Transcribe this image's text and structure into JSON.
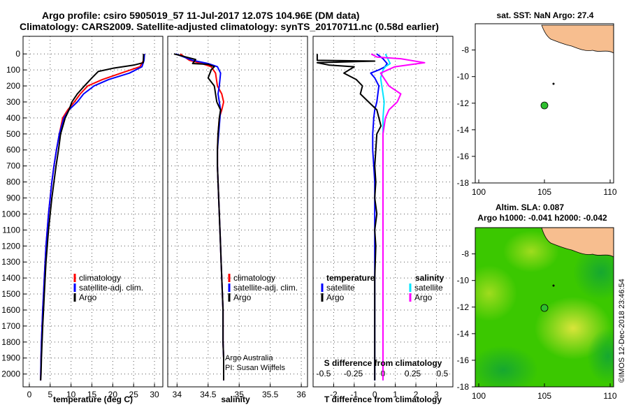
{
  "header": {
    "title_line1": "Argo profile: csiro 5905019_57 11-Jul-2017 12.07S 104.96E (DM data)",
    "title_line2": "Climatology: CARS2009. Satellite-adjusted climatology: synTS_20170711.nc (0.58d earlier)"
  },
  "colors": {
    "climatology": "#ff0000",
    "satellite": "#0000ff",
    "argo": "#000000",
    "salinity_satellite": "#00e5ff",
    "salinity_argo": "#ff00ff",
    "land": "#f7be8f",
    "sst_background": "#ffffff",
    "sla_background": "#3bc800",
    "float_marker": "#2fbf2f"
  },
  "chart_data": [
    {
      "type": "line",
      "name": "temperature-profile",
      "xlabel": "temperature (deg C)",
      "ylabel": "",
      "xlim": [
        -1.5,
        32
      ],
      "ylim": [
        2080,
        0
      ],
      "xticks": [
        0,
        5,
        10,
        15,
        20,
        25,
        30
      ],
      "xtick_labels": [
        "0",
        "5",
        "10",
        "15",
        "20",
        "25",
        "30"
      ],
      "yticks": [
        0,
        100,
        200,
        300,
        400,
        500,
        600,
        700,
        800,
        900,
        1000,
        1100,
        1200,
        1300,
        1400,
        1500,
        1600,
        1700,
        1800,
        1900,
        2000
      ],
      "ytick_labels": [
        "0",
        "100",
        "200",
        "300",
        "400",
        "500",
        "600",
        "700",
        "800",
        "900",
        "1000",
        "1100",
        "1200",
        "1300",
        "1400",
        "1500",
        "1600",
        "1700",
        "1800",
        "1900",
        "2000"
      ],
      "legend": [
        "climatology",
        "satellite-adj. clim.",
        "Argo"
      ],
      "series": [
        {
          "name": "climatology",
          "x": [
            27.5,
            27.4,
            26.5,
            22,
            17.5,
            14,
            12.2,
            10.8,
            9.2,
            8,
            7.2,
            6.5,
            5.9,
            5.4,
            5,
            4.6,
            4.3,
            4,
            3.8,
            3.6,
            3.4,
            3.2,
            3.05,
            2.9,
            2.8,
            2.7
          ],
          "y": [
            0,
            40,
            80,
            120,
            160,
            200,
            250,
            300,
            350,
            400,
            500,
            600,
            700,
            800,
            900,
            1000,
            1100,
            1200,
            1300,
            1400,
            1500,
            1600,
            1700,
            1800,
            1900,
            2040
          ]
        },
        {
          "name": "satellite",
          "x": [
            27.6,
            27.5,
            27,
            24,
            19,
            15.5,
            13,
            11.5,
            9.5,
            8.3,
            7.2,
            6.5,
            5.9,
            5.4,
            5,
            4.6,
            4.3,
            4,
            3.8,
            3.6,
            3.4,
            3.2,
            3.05,
            2.9,
            2.8,
            2.7
          ],
          "y": [
            0,
            40,
            80,
            120,
            160,
            200,
            250,
            300,
            350,
            400,
            500,
            600,
            700,
            800,
            900,
            1000,
            1100,
            1200,
            1300,
            1400,
            1500,
            1600,
            1700,
            1800,
            1900,
            2040
          ]
        },
        {
          "name": "Argo",
          "x": [
            27.4,
            27.3,
            25,
            20,
            16.5,
            15,
            13.2,
            11.5,
            10.2,
            9.5,
            8.6,
            7.5,
            7,
            6.4,
            5.9,
            5.4,
            5,
            4.6,
            4.3,
            4,
            3.8,
            3.6,
            3.4,
            3.2,
            3.05,
            2.9,
            2.8,
            2.7
          ],
          "y": [
            0,
            55,
            70,
            90,
            110,
            150,
            200,
            250,
            300,
            350,
            400,
            500,
            600,
            700,
            800,
            900,
            1000,
            1100,
            1200,
            1300,
            1400,
            1500,
            1600,
            1700,
            1800,
            1900,
            2000,
            2040
          ]
        }
      ]
    },
    {
      "type": "line",
      "name": "salinity-profile",
      "xlabel": "salinity",
      "ylabel": "",
      "xlim": [
        33.85,
        36.1
      ],
      "ylim": [
        2080,
        0
      ],
      "xticks": [
        34,
        34.5,
        35,
        35.5,
        36
      ],
      "xtick_labels": [
        "34",
        "34.5",
        "35",
        "35.5",
        "36"
      ],
      "legend": [
        "climatology",
        "satellite-adj. clim.",
        "Argo"
      ],
      "annotations": [
        "Argo Australia",
        "PI: Susan Wijffels"
      ],
      "series": [
        {
          "name": "climatology",
          "x": [
            34.05,
            34.2,
            34.4,
            34.55,
            34.62,
            34.65,
            34.72,
            34.75,
            34.72,
            34.68,
            34.66,
            34.65,
            34.65,
            34.66,
            34.67,
            34.68,
            34.69,
            34.7,
            34.71,
            34.72,
            34.73,
            34.74,
            34.74,
            34.75,
            34.75
          ],
          "y": [
            0,
            40,
            60,
            80,
            120,
            200,
            250,
            300,
            350,
            400,
            500,
            600,
            700,
            800,
            900,
            1000,
            1100,
            1200,
            1300,
            1400,
            1500,
            1600,
            1800,
            1900,
            2040
          ]
        },
        {
          "name": "satellite",
          "x": [
            33.98,
            34.25,
            34.5,
            34.65,
            34.7,
            34.68,
            34.66,
            34.68,
            34.7,
            34.69,
            34.67,
            34.65,
            34.65,
            34.66,
            34.67,
            34.68,
            34.69,
            34.7,
            34.71,
            34.72,
            34.73,
            34.74,
            34.74,
            34.75,
            34.75
          ],
          "y": [
            0,
            40,
            60,
            80,
            120,
            200,
            250,
            300,
            350,
            400,
            500,
            600,
            700,
            800,
            900,
            1000,
            1100,
            1200,
            1300,
            1400,
            1500,
            1600,
            1800,
            1900,
            2040
          ]
        },
        {
          "name": "Argo",
          "x": [
            33.95,
            34.3,
            34.25,
            34.5,
            34.6,
            34.55,
            34.5,
            34.6,
            34.62,
            34.64,
            34.7,
            34.68,
            34.66,
            34.65,
            34.65,
            34.66,
            34.67,
            34.68,
            34.69,
            34.7,
            34.71,
            34.72,
            34.73,
            34.74,
            34.74,
            34.75,
            34.75
          ],
          "y": [
            0,
            35,
            60,
            65,
            80,
            100,
            150,
            200,
            250,
            300,
            350,
            400,
            500,
            600,
            700,
            800,
            900,
            1000,
            1100,
            1200,
            1300,
            1400,
            1500,
            1600,
            1800,
            1900,
            2040
          ]
        }
      ]
    },
    {
      "type": "line",
      "name": "difference-profile",
      "xlabel": "T difference from climatology",
      "ylabel": "",
      "xlim": [
        -3,
        3.8
      ],
      "ylim": [
        2080,
        0
      ],
      "xticks": [
        -2,
        -1,
        0,
        1,
        2,
        3
      ],
      "xtick_labels": [
        "-2",
        "-1",
        "0",
        "1",
        "2",
        "3"
      ],
      "secondary_axis_label": "S difference from climatology",
      "secondary_xticks": [
        -0.5,
        -0.25,
        0,
        0.25,
        0.5
      ],
      "secondary_xtick_labels": [
        "-0.5",
        "-0.25",
        "0",
        "0.25",
        "0.5"
      ],
      "legend_left": [
        "temperature",
        "satellite",
        "Argo"
      ],
      "legend_right": [
        "salinity",
        "satellite",
        "Argo"
      ],
      "series": [
        {
          "name": "T satellite",
          "axis": "T",
          "x": [
            0.1,
            0.4,
            0.6,
            0.5,
            0.2,
            -0.2,
            0,
            0.2,
            0.1,
            0,
            -0.05,
            -0.1,
            -0.1,
            -0.05,
            0,
            0,
            0,
            0,
            0,
            0,
            0,
            0,
            0,
            0,
            0,
            0,
            0
          ],
          "y": [
            0,
            30,
            60,
            80,
            100,
            120,
            150,
            200,
            300,
            350,
            400,
            500,
            600,
            700,
            800,
            900,
            1000,
            1200,
            1400,
            1500,
            1600,
            1700,
            1800,
            1900,
            2000,
            2020,
            2040
          ]
        },
        {
          "name": "T Argo",
          "axis": "T",
          "x": [
            -2.8,
            -2.8,
            0,
            -2.8,
            -2.2,
            -1,
            -1.5,
            -0.9,
            -0.6,
            -0.7,
            -0.3,
            0.1,
            0.3,
            0.1,
            0.05,
            0,
            0.05,
            0,
            0.1,
            0,
            0.05,
            0,
            0,
            0,
            0,
            0,
            0,
            0
          ],
          "y": [
            0,
            40,
            45,
            55,
            70,
            80,
            120,
            160,
            200,
            250,
            300,
            350,
            450,
            500,
            600,
            700,
            800,
            900,
            1000,
            1100,
            1200,
            1400,
            1500,
            1600,
            1800,
            1900,
            2000,
            2040
          ]
        },
        {
          "name": "S satellite",
          "axis": "S",
          "x": [
            0.02,
            0.04,
            0.06,
            0.02,
            0,
            -0.02,
            -0.01,
            0,
            0.01,
            0,
            0,
            0,
            0,
            0,
            0,
            0,
            0,
            0,
            0,
            0,
            0,
            0,
            0,
            0
          ],
          "y": [
            0,
            30,
            60,
            80,
            100,
            150,
            200,
            250,
            300,
            400,
            500,
            600,
            700,
            800,
            900,
            1000,
            1200,
            1400,
            1500,
            1600,
            1800,
            1900,
            2000,
            2040
          ]
        },
        {
          "name": "S Argo",
          "axis": "S",
          "x": [
            -0.1,
            -0.05,
            0.15,
            0.35,
            0.1,
            -0.02,
            0.05,
            0.15,
            0.12,
            0.05,
            0.02,
            0,
            0,
            0,
            0,
            0,
            0,
            0,
            0,
            0,
            0,
            0,
            0,
            0,
            0
          ],
          "y": [
            0,
            20,
            30,
            55,
            80,
            120,
            200,
            250,
            300,
            350,
            400,
            500,
            600,
            700,
            800,
            900,
            1000,
            1200,
            1400,
            1500,
            1600,
            1800,
            1900,
            2000,
            2040
          ]
        }
      ]
    }
  ],
  "maps": {
    "sst": {
      "title": "sat. SST: NaN Argo: 27.4",
      "xticks": [
        "100",
        "105",
        "110"
      ],
      "yticks": [
        "-8",
        "-10",
        "-12",
        "-14",
        "-16",
        "-18"
      ],
      "float_lon": 105,
      "float_lat": -12.07
    },
    "sla": {
      "title": "Altim. SLA: 0.087",
      "subtitle": "Argo h1000: -0.041 h2000: -0.042",
      "xticks": [
        "100",
        "105",
        "110"
      ],
      "yticks": [
        "-8",
        "-10",
        "-12",
        "-14",
        "-16",
        "-18"
      ],
      "float_lon": 105,
      "float_lat": -12.07
    }
  },
  "footer": {
    "credit": "©IMOS 12-Dec-2018 23:46:54"
  }
}
